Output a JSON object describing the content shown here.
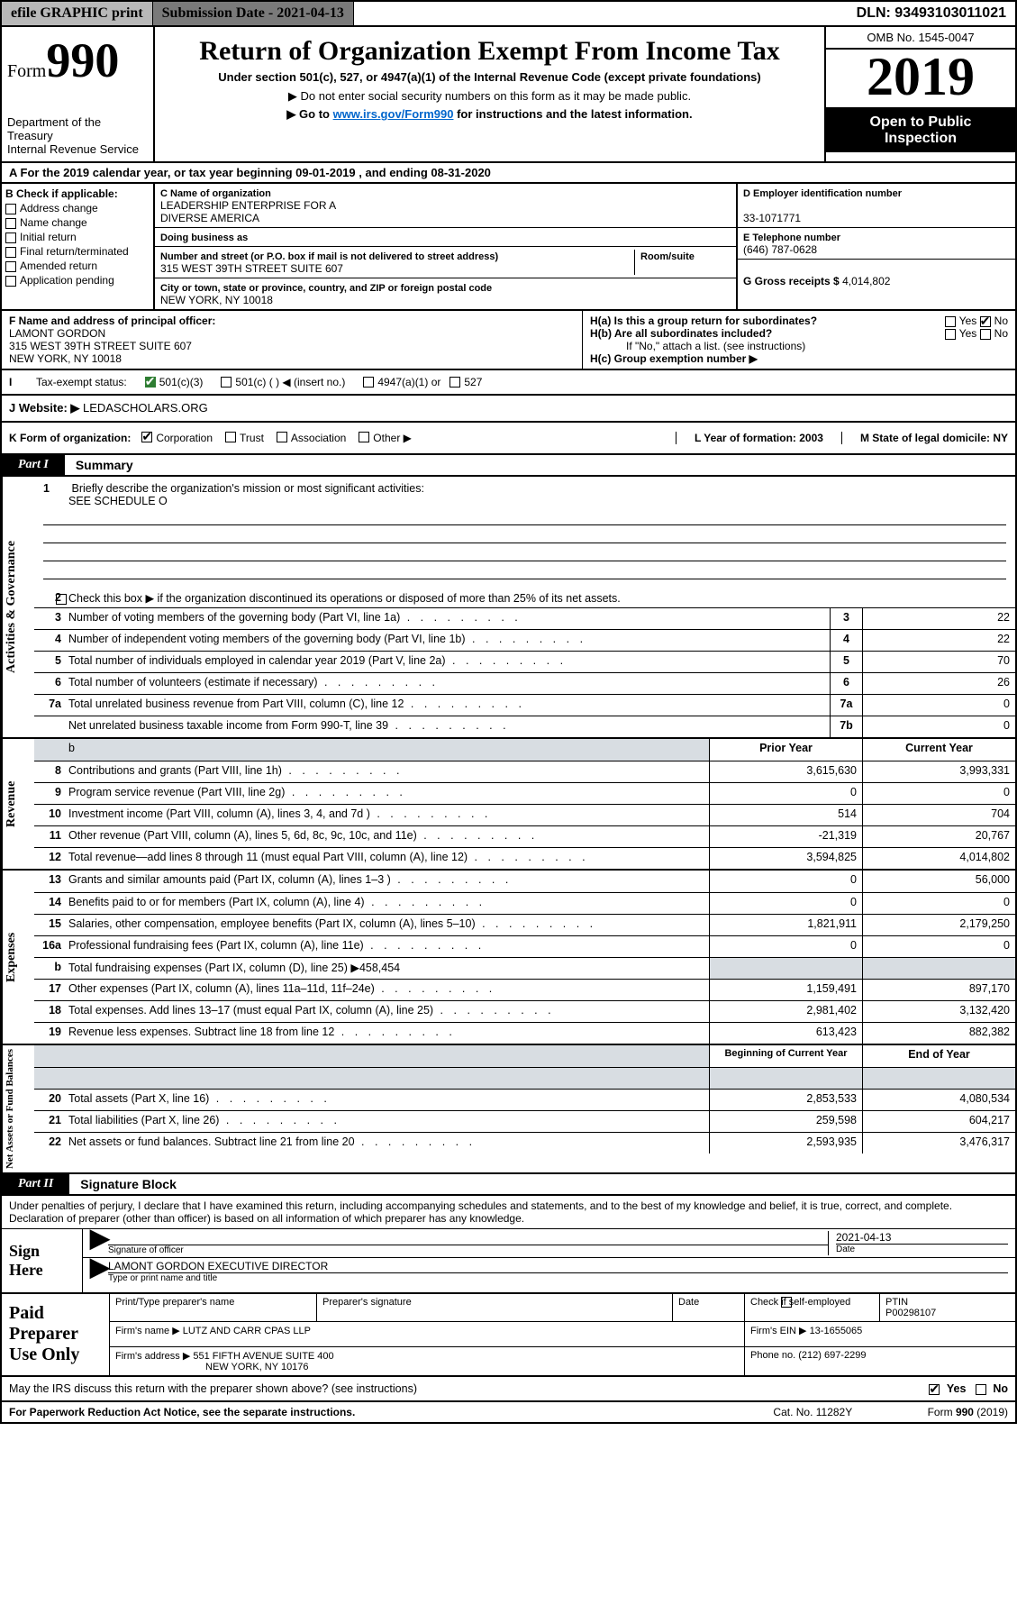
{
  "top": {
    "efile": "efile GRAPHIC print",
    "submission": "Submission Date - 2021-04-13",
    "dln": "DLN: 93493103011021"
  },
  "header": {
    "form_prefix": "Form",
    "form_no": "990",
    "title": "Return of Organization Exempt From Income Tax",
    "subtitle": "Under section 501(c), 527, or 4947(a)(1) of the Internal Revenue Code (except private foundations)",
    "note1": "▶ Do not enter social security numbers on this form as it may be made public.",
    "note2_pre": "▶ Go to ",
    "note2_link": "www.irs.gov/Form990",
    "note2_post": " for instructions and the latest information.",
    "dept": "Department of the Treasury",
    "irs": "Internal Revenue Service",
    "omb": "OMB No. 1545-0047",
    "year": "2019",
    "open1": "Open to Public",
    "open2": "Inspection"
  },
  "sectionA": "A For the 2019 calendar year, or tax year beginning 09-01-2019    , and ending 08-31-2020",
  "colB": {
    "label": "B Check if applicable:",
    "items": [
      "Address change",
      "Name change",
      "Initial return",
      "Final return/terminated",
      "Amended return",
      "Application pending"
    ]
  },
  "colC": {
    "nameLabel": "C Name of organization",
    "name1": "LEADERSHIP ENTERPRISE FOR A",
    "name2": "DIVERSE AMERICA",
    "dba": "Doing business as",
    "addrLabel": "Number and street (or P.O. box if mail is not delivered to street address)",
    "room": "Room/suite",
    "addr": "315 WEST 39TH STREET SUITE 607",
    "cityLabel": "City or town, state or province, country, and ZIP or foreign postal code",
    "city": "NEW YORK, NY  10018"
  },
  "colRight": {
    "einLabel": "D Employer identification number",
    "ein": "33-1071771",
    "telLabel": "E Telephone number",
    "tel": "(646) 787-0628",
    "grossLabel": "G Gross receipts $",
    "gross": "4,014,802"
  },
  "rowF": {
    "labelF": "F  Name and address of principal officer:",
    "name": "LAMONT GORDON",
    "addr": "315 WEST 39TH STREET SUITE 607",
    "city": "NEW YORK, NY  10018",
    "Ha": "H(a)  Is this a group return for subordinates?",
    "Hb": "H(b)  Are all subordinates included?",
    "Hnote": "If \"No,\" attach a list. (see instructions)",
    "Hc": "H(c)  Group exemption number ▶",
    "yes": "Yes",
    "no": "No"
  },
  "rowI": {
    "label": "Tax-exempt status:",
    "o1": "501(c)(3)",
    "o2": "501(c) (  ) ◀ (insert no.)",
    "o3": "4947(a)(1) or",
    "o4": "527"
  },
  "rowJ": {
    "label": "J   Website: ▶ ",
    "value": "LEDASCHOLARS.ORG"
  },
  "rowK": {
    "label": "K Form of organization:",
    "o1": "Corporation",
    "o2": "Trust",
    "o3": "Association",
    "o4": "Other ▶",
    "L": "L Year of formation: 2003",
    "M": "M State of legal domicile: NY"
  },
  "part1": {
    "tab": "Part I",
    "title": "Summary",
    "q1": "Briefly describe the organization's mission or most significant activities:",
    "q1val": "SEE SCHEDULE O",
    "q2": "Check this box ▶         if the organization discontinued its operations or disposed of more than 25% of its net assets.",
    "rows_gov": [
      {
        "n": "3",
        "d": "Number of voting members of the governing body (Part VI, line 1a)",
        "sn": "3",
        "v": "22"
      },
      {
        "n": "4",
        "d": "Number of independent voting members of the governing body (Part VI, line 1b)",
        "sn": "4",
        "v": "22"
      },
      {
        "n": "5",
        "d": "Total number of individuals employed in calendar year 2019 (Part V, line 2a)",
        "sn": "5",
        "v": "70"
      },
      {
        "n": "6",
        "d": "Total number of volunteers (estimate if necessary)",
        "sn": "6",
        "v": "26"
      },
      {
        "n": "7a",
        "d": "Total unrelated business revenue from Part VIII, column (C), line 12",
        "sn": "7a",
        "v": "0"
      },
      {
        "n": "",
        "d": "Net unrelated business taxable income from Form 990-T, line 39",
        "sn": "7b",
        "v": "0"
      }
    ],
    "head_prior": "Prior Year",
    "head_current": "Current Year",
    "rows_rev": [
      {
        "n": "8",
        "d": "Contributions and grants (Part VIII, line 1h)",
        "p": "3,615,630",
        "c": "3,993,331"
      },
      {
        "n": "9",
        "d": "Program service revenue (Part VIII, line 2g)",
        "p": "0",
        "c": "0"
      },
      {
        "n": "10",
        "d": "Investment income (Part VIII, column (A), lines 3, 4, and 7d )",
        "p": "514",
        "c": "704"
      },
      {
        "n": "11",
        "d": "Other revenue (Part VIII, column (A), lines 5, 6d, 8c, 9c, 10c, and 11e)",
        "p": "-21,319",
        "c": "20,767"
      },
      {
        "n": "12",
        "d": "Total revenue—add lines 8 through 11 (must equal Part VIII, column (A), line 12)",
        "p": "3,594,825",
        "c": "4,014,802"
      }
    ],
    "rows_exp": [
      {
        "n": "13",
        "d": "Grants and similar amounts paid (Part IX, column (A), lines 1–3 )",
        "p": "0",
        "c": "56,000"
      },
      {
        "n": "14",
        "d": "Benefits paid to or for members (Part IX, column (A), line 4)",
        "p": "0",
        "c": "0"
      },
      {
        "n": "15",
        "d": "Salaries, other compensation, employee benefits (Part IX, column (A), lines 5–10)",
        "p": "1,821,911",
        "c": "2,179,250"
      },
      {
        "n": "16a",
        "d": "Professional fundraising fees (Part IX, column (A), line 11e)",
        "p": "0",
        "c": "0"
      }
    ],
    "row16b": {
      "n": "b",
      "d": "Total fundraising expenses (Part IX, column (D), line 25) ▶458,454"
    },
    "rows_exp2": [
      {
        "n": "17",
        "d": "Other expenses (Part IX, column (A), lines 11a–11d, 11f–24e)",
        "p": "1,159,491",
        "c": "897,170"
      },
      {
        "n": "18",
        "d": "Total expenses. Add lines 13–17 (must equal Part IX, column (A), line 25)",
        "p": "2,981,402",
        "c": "3,132,420"
      },
      {
        "n": "19",
        "d": "Revenue less expenses. Subtract line 18 from line 12",
        "p": "613,423",
        "c": "882,382"
      }
    ],
    "head_boy": "Beginning of Current Year",
    "head_eoy": "End of Year",
    "rows_net": [
      {
        "n": "20",
        "d": "Total assets (Part X, line 16)",
        "p": "2,853,533",
        "c": "4,080,534"
      },
      {
        "n": "21",
        "d": "Total liabilities (Part X, line 26)",
        "p": "259,598",
        "c": "604,217"
      },
      {
        "n": "22",
        "d": "Net assets or fund balances. Subtract line 21 from line 20",
        "p": "2,593,935",
        "c": "3,476,317"
      }
    ]
  },
  "side": {
    "gov": "Activities & Governance",
    "rev": "Revenue",
    "exp": "Expenses",
    "net": "Net Assets or Fund Balances"
  },
  "part2": {
    "tab": "Part II",
    "title": "Signature Block",
    "decl": "Under penalties of perjury, I declare that I have examined this return, including accompanying schedules and statements, and to the best of my knowledge and belief, it is true, correct, and complete. Declaration of preparer (other than officer) is based on all information of which preparer has any knowledge.",
    "sign_here": "Sign Here",
    "sig_officer": "Signature of officer",
    "sig_date": "2021-04-13",
    "date_lbl": "Date",
    "name_title": "LAMONT GORDON  EXECUTIVE DIRECTOR",
    "type_lbl": "Type or print name and title",
    "paid": "Paid Preparer Use Only",
    "pt_name_lbl": "Print/Type preparer's name",
    "pt_sig_lbl": "Preparer's signature",
    "pt_date_lbl": "Date",
    "pt_check": "Check          if self-employed",
    "ptin_lbl": "PTIN",
    "ptin": "P00298107",
    "firm_name_lbl": "Firm's name    ▶",
    "firm_name": "LUTZ AND CARR CPAS LLP",
    "firm_ein_lbl": "Firm's EIN ▶",
    "firm_ein": "13-1655065",
    "firm_addr_lbl": "Firm's address ▶",
    "firm_addr1": "551 FIFTH AVENUE SUITE 400",
    "firm_addr2": "NEW YORK, NY  10176",
    "phone_lbl": "Phone no.",
    "phone": "(212) 697-2299"
  },
  "discuss": "May the IRS discuss this return with the preparer shown above? (see instructions)",
  "footer": {
    "left": "For Paperwork Reduction Act Notice, see the separate instructions.",
    "mid": "Cat. No. 11282Y",
    "right": "Form 990 (2019)"
  }
}
